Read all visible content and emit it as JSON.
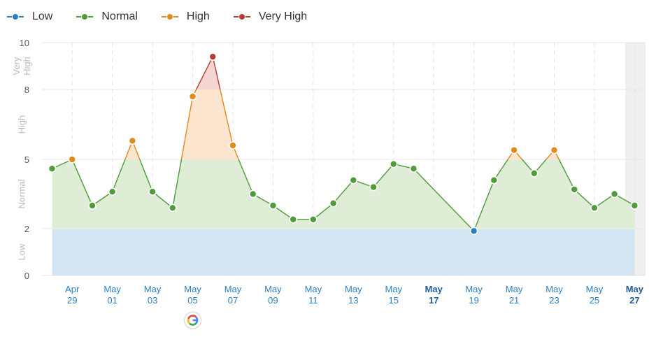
{
  "legend": {
    "items": [
      {
        "label": "Low",
        "color": "#2a7fc1"
      },
      {
        "label": "Normal",
        "color": "#4f9a39"
      },
      {
        "label": "High",
        "color": "#e08a1e"
      },
      {
        "label": "Very High",
        "color": "#b83c31"
      }
    ]
  },
  "chart_data": {
    "type": "area",
    "y_ticks": [
      0,
      2,
      5,
      8,
      10
    ],
    "ylim": [
      0,
      10
    ],
    "band_labels": [
      {
        "label": "Low",
        "from": 0,
        "to": 2
      },
      {
        "label": "Normal",
        "from": 2,
        "to": 5
      },
      {
        "label": "High",
        "from": 5,
        "to": 8
      },
      {
        "label": "Very High",
        "from": 8,
        "to": 10
      }
    ],
    "x_ticks": [
      {
        "month": "Apr",
        "day": "29",
        "index": 1
      },
      {
        "month": "May",
        "day": "01",
        "index": 3
      },
      {
        "month": "May",
        "day": "03",
        "index": 5
      },
      {
        "month": "May",
        "day": "05",
        "index": 7
      },
      {
        "month": "May",
        "day": "07",
        "index": 9
      },
      {
        "month": "May",
        "day": "09",
        "index": 11
      },
      {
        "month": "May",
        "day": "11",
        "index": 13
      },
      {
        "month": "May",
        "day": "13",
        "index": 15
      },
      {
        "month": "May",
        "day": "15",
        "index": 17
      },
      {
        "month": "May",
        "day": "17",
        "index": 19
      },
      {
        "month": "May",
        "day": "19",
        "index": 21
      },
      {
        "month": "May",
        "day": "21",
        "index": 23
      },
      {
        "month": "May",
        "day": "23",
        "index": 25
      },
      {
        "month": "May",
        "day": "25",
        "index": 27
      },
      {
        "month": "May",
        "day": "27",
        "index": 29
      }
    ],
    "points": [
      {
        "index": 0,
        "value": 4.6,
        "level": "Normal"
      },
      {
        "index": 1,
        "value": 5.0,
        "level": "High"
      },
      {
        "index": 2,
        "value": 3.0,
        "level": "Normal"
      },
      {
        "index": 3,
        "value": 3.6,
        "level": "Normal"
      },
      {
        "index": 4,
        "value": 5.8,
        "level": "High"
      },
      {
        "index": 5,
        "value": 3.6,
        "level": "Normal"
      },
      {
        "index": 6,
        "value": 2.9,
        "level": "Normal"
      },
      {
        "index": 7,
        "value": 7.7,
        "level": "High"
      },
      {
        "index": 8,
        "value": 9.4,
        "level": "Very High"
      },
      {
        "index": 9,
        "value": 5.6,
        "level": "High"
      },
      {
        "index": 10,
        "value": 3.5,
        "level": "Normal"
      },
      {
        "index": 11,
        "value": 3.0,
        "level": "Normal"
      },
      {
        "index": 12,
        "value": 2.4,
        "level": "Normal"
      },
      {
        "index": 13,
        "value": 2.4,
        "level": "Normal"
      },
      {
        "index": 14,
        "value": 3.1,
        "level": "Normal"
      },
      {
        "index": 15,
        "value": 4.1,
        "level": "Normal"
      },
      {
        "index": 16,
        "value": 3.8,
        "level": "Normal"
      },
      {
        "index": 17,
        "value": 4.8,
        "level": "Normal"
      },
      {
        "index": 18,
        "value": 4.6,
        "level": "Normal"
      },
      {
        "index": 21,
        "value": 1.9,
        "level": "Low"
      },
      {
        "index": 22,
        "value": 4.1,
        "level": "Normal"
      },
      {
        "index": 23,
        "value": 5.4,
        "level": "High"
      },
      {
        "index": 24,
        "value": 4.4,
        "level": "Normal"
      },
      {
        "index": 25,
        "value": 5.4,
        "level": "High"
      },
      {
        "index": 26,
        "value": 3.7,
        "level": "Normal"
      },
      {
        "index": 27,
        "value": 2.9,
        "level": "Normal"
      },
      {
        "index": 28,
        "value": 3.5,
        "level": "Normal"
      },
      {
        "index": 29,
        "value": 3.0,
        "level": "Normal"
      }
    ],
    "annotations": [
      {
        "icon": "google-update-icon",
        "index": 7
      }
    ],
    "grid": true,
    "legend_position": "top-left"
  }
}
